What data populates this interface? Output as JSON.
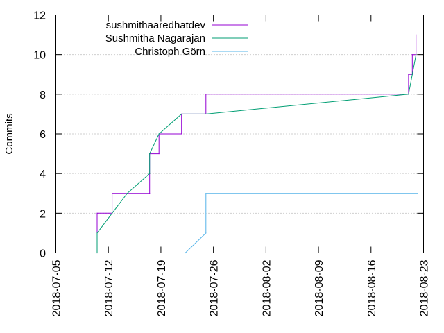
{
  "chart_data": {
    "type": "line",
    "title": "",
    "xlabel": "",
    "ylabel": "Commits",
    "x_axis_type": "date",
    "xlim": [
      "2018-07-05",
      "2018-08-23"
    ],
    "ylim": [
      0,
      12
    ],
    "x_ticks": [
      "2018-07-05",
      "2018-07-12",
      "2018-07-19",
      "2018-07-26",
      "2018-08-02",
      "2018-08-09",
      "2018-08-16",
      "2018-08-23"
    ],
    "y_ticks": [
      0,
      2,
      4,
      6,
      8,
      10,
      12
    ],
    "grid": true,
    "legend_position": "top-left",
    "series": [
      {
        "name": "sushmithaaredhatdev",
        "color": "#9400d3",
        "style": "steps",
        "points": [
          [
            "2018-07-10 12:00",
            0
          ],
          [
            "2018-07-10 12:00",
            1
          ],
          [
            "2018-07-10 12:00",
            2
          ],
          [
            "2018-07-12 12:00",
            2
          ],
          [
            "2018-07-12 12:00",
            3
          ],
          [
            "2018-07-17 12:00",
            3
          ],
          [
            "2018-07-17 12:00",
            5
          ],
          [
            "2018-07-18 18:00",
            5
          ],
          [
            "2018-07-18 18:00",
            6
          ],
          [
            "2018-07-21 18:00",
            6
          ],
          [
            "2018-07-21 18:00",
            7
          ],
          [
            "2018-07-25 00:00",
            7
          ],
          [
            "2018-07-25 00:00",
            8
          ],
          [
            "2018-08-21 00:00",
            8
          ],
          [
            "2018-08-21 00:00",
            9
          ],
          [
            "2018-08-21 12:00",
            9
          ],
          [
            "2018-08-21 12:00",
            10
          ],
          [
            "2018-08-22 00:00",
            10
          ],
          [
            "2018-08-22 00:00",
            11
          ]
        ]
      },
      {
        "name": "Sushmitha Nagarajan",
        "color": "#009e73",
        "style": "lines",
        "points": [
          [
            "2018-07-10 12:00",
            0
          ],
          [
            "2018-07-10 12:00",
            1
          ],
          [
            "2018-07-12 12:00",
            2
          ],
          [
            "2018-07-14 12:00",
            3
          ],
          [
            "2018-07-17 12:00",
            4
          ],
          [
            "2018-07-17 12:00",
            5
          ],
          [
            "2018-07-18 18:00",
            6
          ],
          [
            "2018-07-21 18:00",
            7
          ],
          [
            "2018-07-25 00:00",
            7
          ],
          [
            "2018-08-21 00:00",
            8
          ],
          [
            "2018-08-21 12:00",
            9
          ],
          [
            "2018-08-22 00:00",
            10
          ]
        ]
      },
      {
        "name": "Christoph Görn",
        "color": "#56b4e9",
        "style": "lines",
        "points": [
          [
            "2018-07-22 06:00",
            0
          ],
          [
            "2018-07-25 00:00",
            1
          ],
          [
            "2018-07-25 00:00",
            3
          ],
          [
            "2018-08-22 06:00",
            3
          ]
        ]
      }
    ]
  }
}
